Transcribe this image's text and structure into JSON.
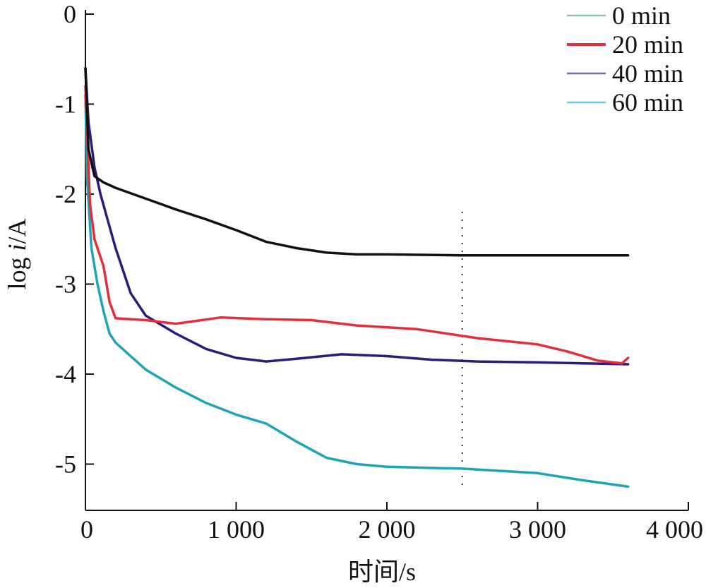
{
  "chart_data": {
    "type": "line",
    "xlabel": "时间/s",
    "ylabel_prefix": "log ",
    "ylabel_var": "i",
    "ylabel_suffix": "/A",
    "xlim": [
      0,
      4000
    ],
    "ylim": [
      -5.5,
      0
    ],
    "xticks": [
      0,
      1000,
      2000,
      3000,
      4000
    ],
    "xtick_labels": [
      "0",
      "1 000",
      "2 000",
      "3 000",
      "4 000"
    ],
    "yticks": [
      0,
      -1,
      -2,
      -3,
      -4,
      -5
    ],
    "ytick_labels": [
      "0",
      "-1",
      "-2",
      "-3",
      "-4",
      "-5"
    ],
    "grid": false,
    "legend_position": "top-right",
    "series": [
      {
        "name": "0 min",
        "color": "#111111",
        "legend_color": "#8fbfb8",
        "x": [
          0,
          20,
          60,
          120,
          200,
          400,
          600,
          800,
          1000,
          1200,
          1400,
          1600,
          1800,
          2000,
          2500,
          3000,
          3600
        ],
        "y": [
          -0.6,
          -1.5,
          -1.8,
          -1.87,
          -1.93,
          -2.05,
          -2.17,
          -2.28,
          -2.4,
          -2.53,
          -2.6,
          -2.65,
          -2.67,
          -2.67,
          -2.68,
          -2.68,
          -2.68
        ]
      },
      {
        "name": "20 min",
        "color": "#e0303a",
        "legend_color": "#e0303a",
        "x": [
          0,
          30,
          60,
          120,
          160,
          200,
          400,
          600,
          900,
          1200,
          1500,
          1800,
          2200,
          2600,
          3000,
          3200,
          3400,
          3560,
          3600
        ],
        "y": [
          -0.8,
          -2.1,
          -2.5,
          -2.8,
          -3.2,
          -3.38,
          -3.4,
          -3.44,
          -3.37,
          -3.39,
          -3.4,
          -3.46,
          -3.5,
          -3.6,
          -3.67,
          -3.75,
          -3.85,
          -3.88,
          -3.82
        ]
      },
      {
        "name": "40 min",
        "color": "#2d1a7a",
        "legend_color": "#7a66b8",
        "x": [
          0,
          20,
          60,
          100,
          150,
          200,
          300,
          400,
          600,
          800,
          1000,
          1200,
          1400,
          1700,
          2000,
          2300,
          2600,
          3000,
          3300,
          3600
        ],
        "y": [
          -0.6,
          -1.2,
          -1.7,
          -2.0,
          -2.3,
          -2.6,
          -3.1,
          -3.35,
          -3.55,
          -3.72,
          -3.82,
          -3.86,
          -3.83,
          -3.78,
          -3.8,
          -3.84,
          -3.86,
          -3.87,
          -3.88,
          -3.89
        ]
      },
      {
        "name": "60 min",
        "color": "#1fa3b6",
        "legend_color": "#6cc8d8",
        "x": [
          0,
          10,
          40,
          80,
          120,
          160,
          200,
          400,
          600,
          800,
          1000,
          1200,
          1400,
          1600,
          1800,
          2000,
          2500,
          3000,
          3300,
          3600
        ],
        "y": [
          -0.9,
          -1.8,
          -2.6,
          -3.0,
          -3.3,
          -3.55,
          -3.65,
          -3.95,
          -4.15,
          -4.32,
          -4.45,
          -4.55,
          -4.75,
          -4.93,
          -5.0,
          -5.03,
          -5.05,
          -5.1,
          -5.18,
          -5.25
        ]
      }
    ],
    "marker_line_x": 2500
  }
}
